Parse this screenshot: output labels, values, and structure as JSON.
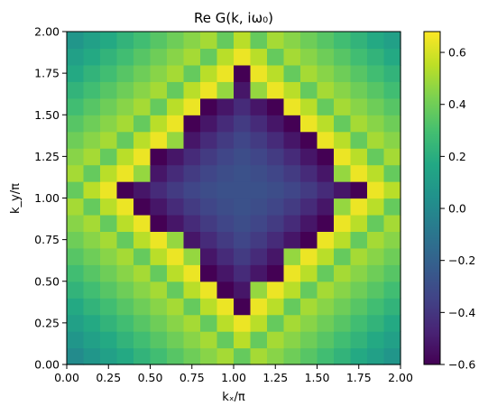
{
  "chart_data": {
    "type": "heatmap",
    "title": "Re G(k, iω₀)",
    "xlabel": "kₓ/π",
    "ylabel": "k_y/π",
    "xlim": [
      0,
      2
    ],
    "ylim": [
      0,
      2
    ],
    "grid_n": 20,
    "colormap": "viridis",
    "clim": [
      -0.6,
      0.68
    ],
    "x_ticks": [
      "0.00",
      "0.25",
      "0.50",
      "0.75",
      "1.00",
      "1.25",
      "1.50",
      "1.75",
      "2.00"
    ],
    "y_ticks": [
      "0.00",
      "0.25",
      "0.50",
      "0.75",
      "1.00",
      "1.25",
      "1.50",
      "1.75",
      "2.00"
    ],
    "colorbar_ticks": [
      "−0.6",
      "−0.4",
      "−0.2",
      "0.0",
      "0.2",
      "0.4",
      "0.6"
    ],
    "colorbar_tick_values": [
      -0.6,
      -0.4,
      -0.2,
      0.0,
      0.2,
      0.4,
      0.6
    ],
    "function": "Re G(k, iω₀) on a 20×20 grid with kx, ky ∈ [0, 2), Fermi surface |kx−1|+|ky−1|≈0.7"
  }
}
